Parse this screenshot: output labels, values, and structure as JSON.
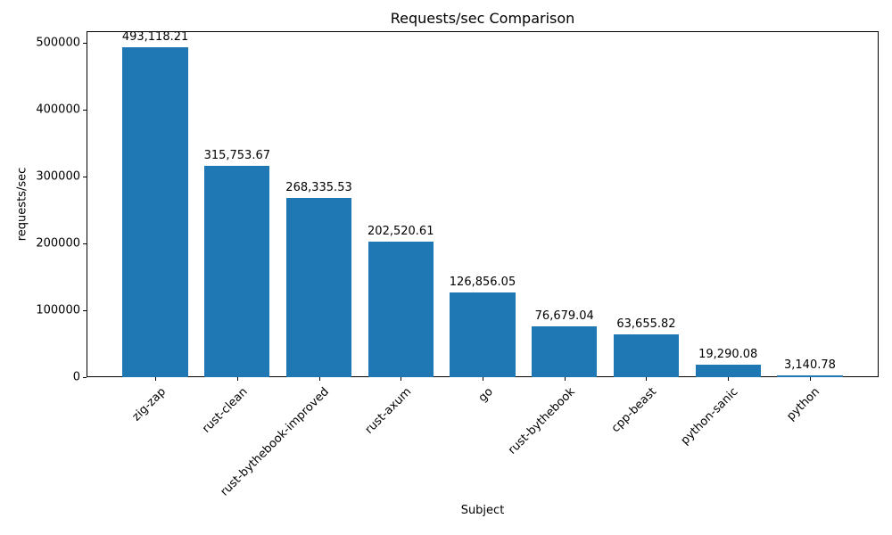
{
  "chart_data": {
    "type": "bar",
    "title": "Requests/sec Comparison",
    "xlabel": "Subject",
    "ylabel": "requests/sec",
    "categories": [
      "zig-zap",
      "rust-clean",
      "rust-bythebook-improved",
      "rust-axum",
      "go",
      "rust-bythebook",
      "cpp-beast",
      "python-sanic",
      "python"
    ],
    "values": [
      493118.21,
      315753.67,
      268335.53,
      202520.61,
      126856.05,
      76679.04,
      63655.82,
      19290.08,
      3140.78
    ],
    "value_labels": [
      "493,118.21",
      "315,753.67",
      "268,335.53",
      "202,520.61",
      "126,856.05",
      "76,679.04",
      "63,655.82",
      "19,290.08",
      "3,140.78"
    ],
    "y_ticks": [
      0,
      100000,
      200000,
      300000,
      400000,
      500000
    ],
    "y_tick_labels": [
      "0",
      "100000",
      "200000",
      "300000",
      "400000",
      "500000"
    ],
    "ylim": [
      0,
      517774
    ],
    "bar_color": "#1f77b4",
    "grid": false,
    "legend_position": "none",
    "x_tick_rotation_deg": 45
  }
}
